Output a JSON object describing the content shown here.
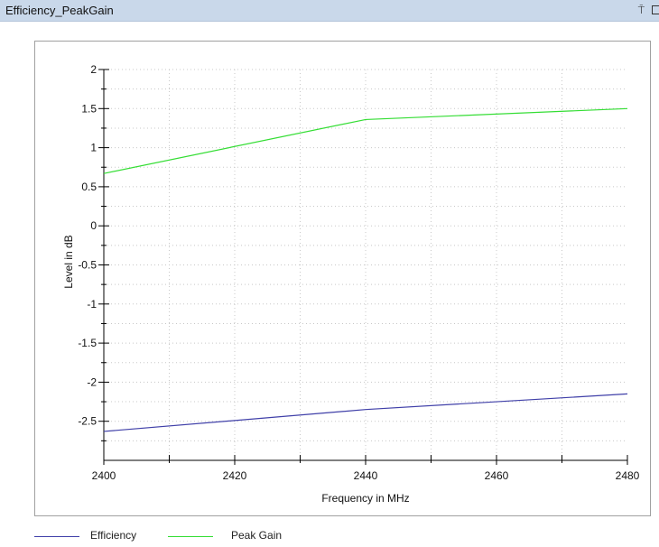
{
  "window": {
    "title": "Efficiency_PeakGain",
    "pin_glyph": "⍑",
    "pin_icon": "pin-icon",
    "float_icon": "float-window-icon"
  },
  "chart_data": {
    "type": "line",
    "title": "",
    "xlabel": "Frequency in MHz",
    "ylabel": "Level in dB",
    "xlim": [
      2400,
      2480
    ],
    "ylim": [
      -3,
      2
    ],
    "x_ticks": [
      2400,
      2420,
      2440,
      2460,
      2480
    ],
    "y_ticks": [
      2,
      1.5,
      1,
      0.5,
      0,
      -0.5,
      -1,
      -1.5,
      -2,
      -2.5
    ],
    "grid": true,
    "legend_placement": "bottom-left",
    "series": [
      {
        "name": "Efficiency",
        "color": "#3f3fa8",
        "x": [
          2400,
          2440,
          2480
        ],
        "y": [
          -2.63,
          -2.35,
          -2.15
        ]
      },
      {
        "name": "Peak Gain",
        "color": "#33dd33",
        "x": [
          2400,
          2440,
          2480
        ],
        "y": [
          0.67,
          1.36,
          1.5
        ]
      }
    ]
  }
}
